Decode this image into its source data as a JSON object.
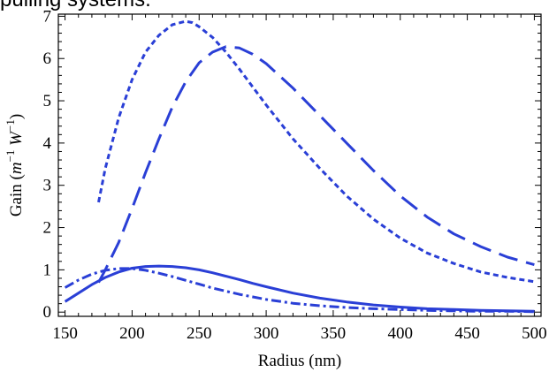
{
  "caption": "pulling systems.",
  "chart_data": {
    "type": "line",
    "xlabel": "Radius (nm)",
    "ylabel": {
      "prefix": "Gain (",
      "m": "m",
      "exp1": "−1",
      "w": " W",
      "exp2": "−1",
      "suffix": ")"
    },
    "xlim": [
      145,
      505
    ],
    "ylim": [
      -0.1,
      7.05
    ],
    "xticks": [
      150,
      200,
      250,
      300,
      350,
      400,
      450,
      500
    ],
    "yticks": [
      0,
      1,
      2,
      3,
      4,
      5,
      6,
      7
    ],
    "grid": false,
    "color": "#2a3fd6",
    "series": [
      {
        "style": "solid",
        "x": [
          150,
          160,
          170,
          180,
          190,
          200,
          210,
          220,
          230,
          240,
          250,
          260,
          270,
          280,
          290,
          300,
          320,
          340,
          360,
          380,
          400,
          420,
          440,
          460,
          480,
          500
        ],
        "y": [
          0.25,
          0.45,
          0.65,
          0.82,
          0.95,
          1.04,
          1.08,
          1.09,
          1.08,
          1.05,
          1.0,
          0.93,
          0.85,
          0.77,
          0.68,
          0.6,
          0.45,
          0.33,
          0.24,
          0.17,
          0.12,
          0.08,
          0.06,
          0.04,
          0.03,
          0.02
        ]
      },
      {
        "style": "dashdot",
        "x": [
          150,
          160,
          170,
          180,
          190,
          200,
          210,
          220,
          230,
          240,
          250,
          260,
          280,
          300,
          320,
          340,
          360,
          380,
          400,
          420,
          440,
          460,
          480,
          500
        ],
        "y": [
          0.58,
          0.76,
          0.9,
          0.99,
          1.03,
          1.03,
          0.99,
          0.92,
          0.84,
          0.75,
          0.66,
          0.57,
          0.42,
          0.3,
          0.21,
          0.15,
          0.11,
          0.08,
          0.06,
          0.04,
          0.03,
          0.02,
          0.02,
          0.01
        ]
      },
      {
        "style": "shortdash",
        "x": [
          175,
          180,
          190,
          200,
          210,
          220,
          230,
          240,
          245,
          250,
          260,
          270,
          280,
          300,
          320,
          340,
          360,
          380,
          400,
          420,
          440,
          460,
          480,
          500
        ],
        "y": [
          2.6,
          3.4,
          4.6,
          5.5,
          6.15,
          6.55,
          6.8,
          6.88,
          6.85,
          6.75,
          6.5,
          6.15,
          5.75,
          4.9,
          4.1,
          3.4,
          2.75,
          2.2,
          1.75,
          1.4,
          1.15,
          0.95,
          0.82,
          0.72
        ]
      },
      {
        "style": "longdash",
        "x": [
          175,
          180,
          190,
          200,
          210,
          220,
          230,
          240,
          250,
          260,
          270,
          280,
          290,
          300,
          320,
          340,
          360,
          380,
          400,
          420,
          440,
          460,
          480,
          500
        ],
        "y": [
          0.7,
          1.0,
          1.65,
          2.45,
          3.3,
          4.1,
          4.85,
          5.45,
          5.9,
          6.15,
          6.28,
          6.25,
          6.1,
          5.88,
          5.3,
          4.65,
          4.0,
          3.35,
          2.75,
          2.25,
          1.85,
          1.55,
          1.3,
          1.12
        ]
      }
    ]
  }
}
